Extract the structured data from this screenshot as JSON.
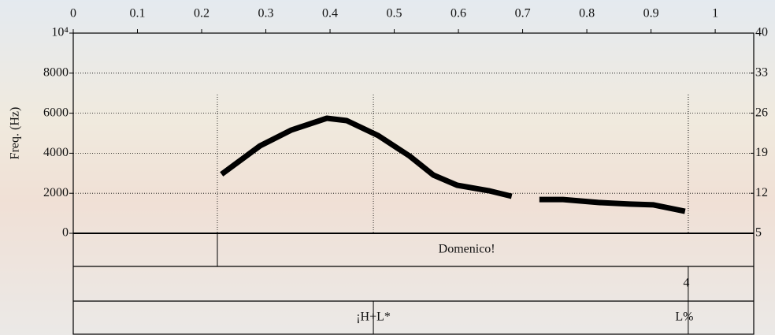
{
  "chart_data": {
    "type": "line",
    "ylabel": "Freq. (Hz)",
    "xlim": [
      0,
      1.06
    ],
    "xticks": [
      0,
      0.1,
      0.2,
      0.3,
      0.4,
      0.5,
      0.6,
      0.7,
      0.8,
      0.9,
      1
    ],
    "ylim": [
      0,
      10000
    ],
    "yticks": [
      0,
      2000,
      4000,
      6000,
      8000,
      {
        "value": 10000,
        "label": "10⁴"
      }
    ],
    "y2lim": [
      5,
      40
    ],
    "y2ticks": [
      5,
      12,
      19,
      26,
      33,
      40
    ],
    "grid": true,
    "x": [
      0.231,
      0.291,
      0.34,
      0.395,
      0.426,
      0.475,
      0.524,
      0.561,
      0.598,
      0.647,
      0.683,
      null,
      0.726,
      0.763,
      0.818,
      0.867,
      0.904,
      0.953
    ],
    "series": [
      {
        "color": "#000000",
        "values": [
          2950,
          4370,
          5160,
          5750,
          5630,
          4880,
          3860,
          2910,
          2400,
          2130,
          1850,
          null,
          1690,
          1690,
          1540,
          1460,
          1420,
          1100
        ]
      }
    ],
    "tiers": [
      {
        "boundaries": [
          0.2245
        ],
        "labels": [
          {
            "text": "Domenico!",
            "x": 0.613
          }
        ]
      },
      {
        "boundaries": [
          0.958
        ],
        "labels": [
          {
            "text": "4",
            "x": 0.955
          }
        ]
      },
      {
        "boundaries": [
          0.4675,
          0.958
        ],
        "labels": [
          {
            "text": "¡H+L*",
            "x": 0.4675
          },
          {
            "text": "L%",
            "x": 0.952
          }
        ]
      }
    ]
  }
}
